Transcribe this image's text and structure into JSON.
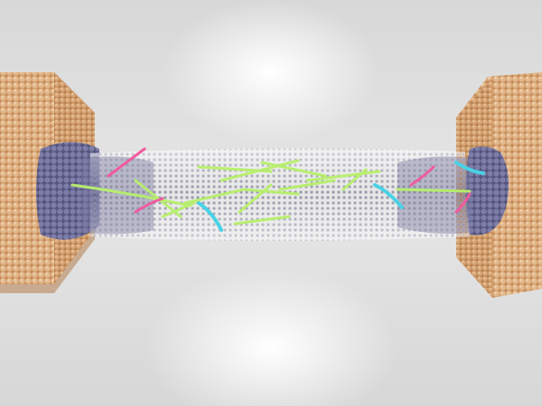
{
  "scene": {
    "subject": "nanowire-between-electrodes",
    "colors": {
      "background": "#e0e0e0",
      "electrode": "#d6a77a",
      "electrode_shadow": "#a9794f",
      "wire_atoms": "#8f8fa6",
      "interface_atoms": "#6e6e9c",
      "defect_green": "#b7f06a",
      "defect_cyan": "#49d2e6",
      "defect_magenta": "#f05aa0"
    }
  }
}
